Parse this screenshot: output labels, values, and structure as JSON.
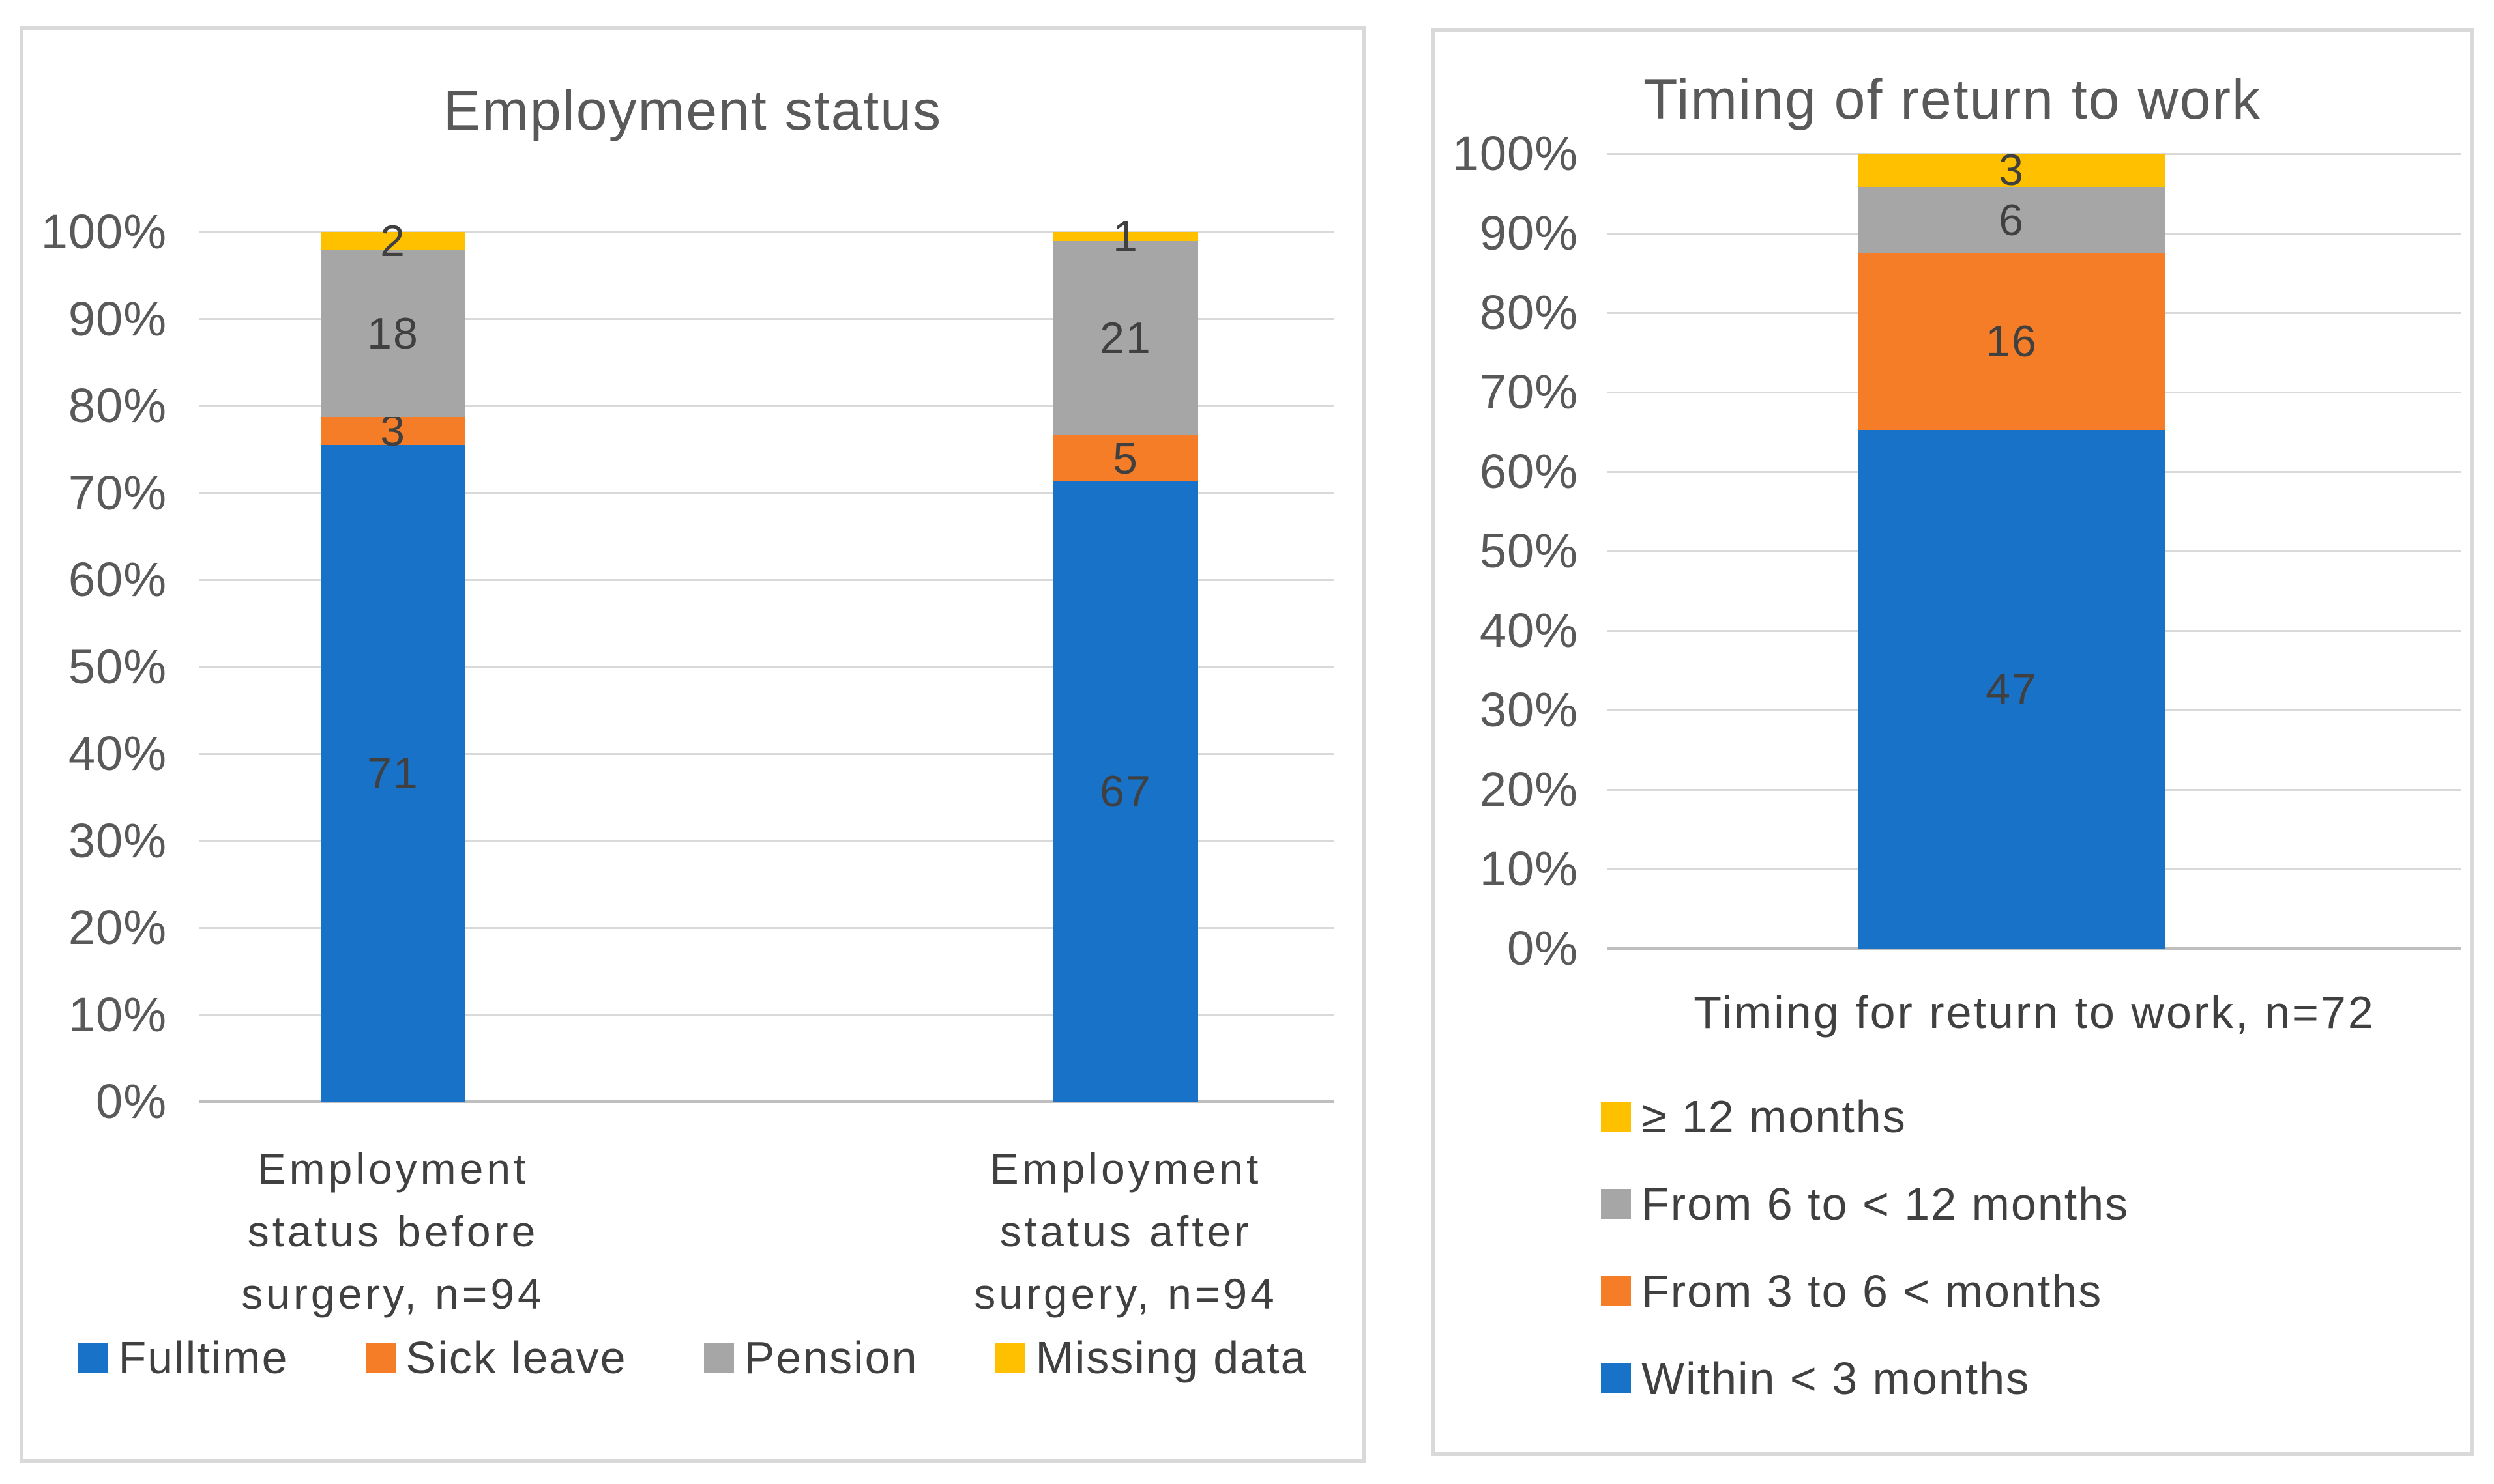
{
  "styles": {
    "background": "#FFFFFF",
    "panel_border": "#D9D9D9",
    "grid_color": "#D9D9D9",
    "axis_line_color": "#BFBFBF",
    "title_color": "#595959",
    "axis_text_color": "#595959",
    "data_label_color": "#404040",
    "series_blue": "#1772C8",
    "series_orange": "#F57D28",
    "series_gray": "#A6A6A6",
    "series_yellow": "#FFC000"
  },
  "chart_data": [
    {
      "type": "bar",
      "stacked": true,
      "percent_axis": true,
      "title": "Employment status",
      "categories": [
        "Employment status before surgery, n=94",
        "Employment status after surgery, n=94"
      ],
      "category_lines": [
        [
          "Employment",
          "status before",
          "surgery, n=94"
        ],
        [
          "Employment",
          "status after",
          "surgery, n=94"
        ]
      ],
      "totals": [
        94,
        94
      ],
      "series": [
        {
          "name": "Fulltime",
          "color": "#1772C8",
          "values": [
            71,
            67
          ]
        },
        {
          "name": "Sick leave",
          "color": "#F57D28",
          "values": [
            3,
            5
          ]
        },
        {
          "name": "Pension",
          "color": "#A6A6A6",
          "values": [
            18,
            21
          ]
        },
        {
          "name": "Missing data",
          "color": "#FFC000",
          "values": [
            2,
            1
          ]
        }
      ],
      "yticks": [
        "100%",
        "90%",
        "80%",
        "70%",
        "60%",
        "50%",
        "40%",
        "30%",
        "20%",
        "10%",
        "0%"
      ],
      "ylim": [
        0,
        100
      ],
      "grid": true,
      "legend_position": "bottom-horizontal",
      "legend_order": [
        "Fulltime",
        "Sick leave",
        "Pension",
        "Missing data"
      ]
    },
    {
      "type": "bar",
      "stacked": true,
      "percent_axis": true,
      "title": "Timing of return to work",
      "categories": [
        "Timing for return to work, n=72"
      ],
      "xlabel": "Timing for return to work, n=72",
      "totals": [
        72
      ],
      "series": [
        {
          "name": "Within < 3 months",
          "color": "#1772C8",
          "values": [
            47
          ]
        },
        {
          "name": "From 3 to 6 < months",
          "color": "#F57D28",
          "values": [
            16
          ]
        },
        {
          "name": "From 6 to < 12 months",
          "color": "#A6A6A6",
          "values": [
            6
          ]
        },
        {
          "name": "≥ 12 months",
          "color": "#FFC000",
          "values": [
            3
          ]
        }
      ],
      "yticks": [
        "100%",
        "90%",
        "80%",
        "70%",
        "60%",
        "50%",
        "40%",
        "30%",
        "20%",
        "10%",
        "0%"
      ],
      "ylim": [
        0,
        100
      ],
      "grid": true,
      "legend_position": "bottom-vertical",
      "legend_order": [
        "≥ 12 months",
        "From 6 to < 12 months",
        "From 3 to 6 < months",
        "Within < 3 months"
      ]
    }
  ]
}
